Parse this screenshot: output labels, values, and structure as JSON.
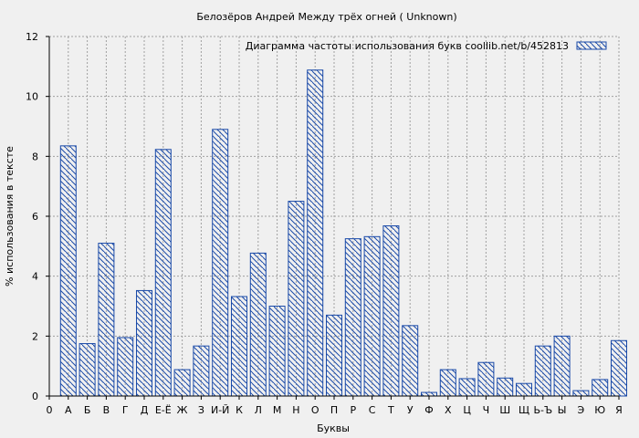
{
  "chart_data": {
    "type": "bar",
    "title": "Белозёров Андрей Между трёх огней ( Unknown)",
    "xlabel": "Буквы",
    "ylabel": "% использования в тексте",
    "ylim": [
      0,
      12
    ],
    "yticks": [
      0,
      2,
      4,
      6,
      8,
      10,
      12
    ],
    "grid": true,
    "legend_position": "top-right",
    "x_tick_labels": [
      "0",
      "А",
      "Б",
      "В",
      "Г",
      "Д",
      "Е-Ё",
      "Ж",
      "З",
      "И-Й",
      "К",
      "Л",
      "М",
      "Н",
      "О",
      "П",
      "Р",
      "С",
      "Т",
      "У",
      "Ф",
      "Х",
      "Ц",
      "Ч",
      "Ш",
      "Щ",
      "Ь-Ъ",
      "Ы",
      "Э",
      "Ю",
      "Я"
    ],
    "categories": [
      "А",
      "Б",
      "В",
      "Г",
      "Д",
      "Е-Ё",
      "Ж",
      "З",
      "И-Й",
      "К",
      "Л",
      "М",
      "Н",
      "О",
      "П",
      "Р",
      "С",
      "Т",
      "У",
      "Ф",
      "Х",
      "Ц",
      "Ч",
      "Ш",
      "Щ",
      "Ь-Ъ",
      "Ы",
      "Э",
      "Ю",
      "Я"
    ],
    "series": [
      {
        "name": "Диаграмма частоты использования букв  coollib.net/b/452813",
        "values": [
          8.35,
          1.75,
          5.1,
          1.95,
          3.52,
          8.23,
          0.88,
          1.67,
          8.9,
          3.32,
          4.77,
          3.0,
          6.5,
          10.88,
          2.7,
          5.25,
          5.32,
          5.68,
          2.35,
          0.12,
          0.88,
          0.58,
          1.12,
          0.6,
          0.42,
          1.67,
          2.0,
          0.18,
          0.55,
          1.85
        ]
      }
    ],
    "colors": {
      "bar_stroke": "#1a4aa8",
      "background": "#f0f0f0",
      "grid": "#a0a0a0",
      "axis": "#000000"
    }
  }
}
